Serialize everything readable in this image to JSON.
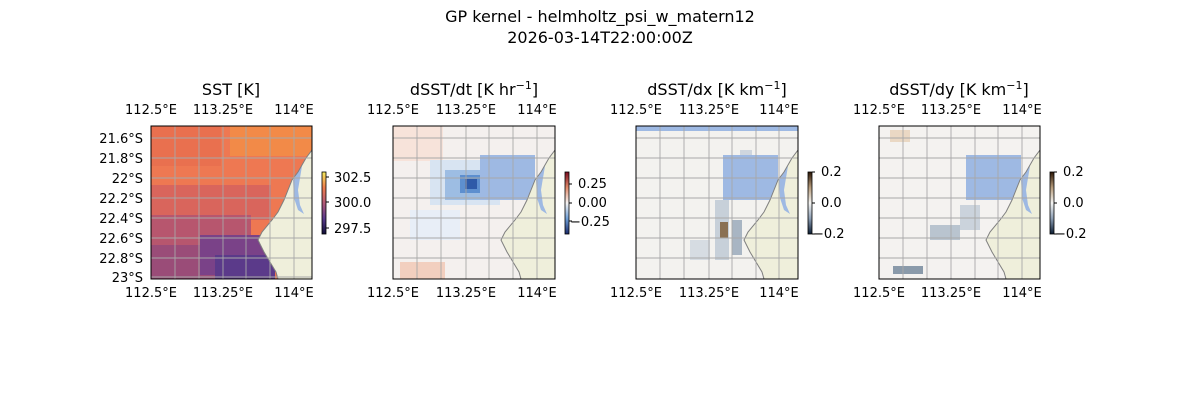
{
  "figure": {
    "title_line1": "GP kernel - helmholtz_psi_w_matern12",
    "title_line2": "2026-03-14T22:00:00Z"
  },
  "colors": {
    "land": "#efefdb",
    "water": "#9eb9e3",
    "grid": "#a8a8a8",
    "coast": "#7f7f7f"
  },
  "chart_data": [
    {
      "type": "heatmap",
      "title": "SST [K]",
      "colormap": "thermal (dark purple to orange-yellow)",
      "xticks_top": [
        "112.5°E",
        "113.25°E",
        "114°E"
      ],
      "xticks_bottom": [
        "112.5°E",
        "113.25°E",
        "114°E"
      ],
      "yticks_left": [
        "21.6°S",
        "21.8°S",
        "22°S",
        "22.2°S",
        "22.4°S",
        "22.6°S",
        "22.8°S",
        "23°S"
      ],
      "colorbar_ticks": [
        "302.5",
        "300.0",
        "297.5"
      ],
      "colorbar_range": [
        296.8,
        303.4
      ]
    },
    {
      "type": "heatmap",
      "title": "dSST/dt [K hr",
      "title_sup": "−1",
      "title_end": "]",
      "colormap": "diverging blue-white-red",
      "xticks_top": [
        "112.5°E",
        "113.25°E",
        "114°E"
      ],
      "xticks_bottom": [
        "112.5°E",
        "113.25°E",
        "114°E"
      ],
      "colorbar_ticks": [
        "0.25",
        "0.00",
        "−0.25"
      ],
      "colorbar_range": [
        -0.42,
        0.42
      ]
    },
    {
      "type": "heatmap",
      "title": "dSST/dx [K km",
      "title_sup": "−1",
      "title_end": "]",
      "colormap": "diverging dark-blue-white-brown",
      "xticks_top": [
        "112.5°E",
        "113.25°E",
        "114°E"
      ],
      "xticks_bottom": [
        "112.5°E",
        "113.25°E",
        "114°E"
      ],
      "colorbar_ticks": [
        "0.2",
        "0.0",
        "−0.2"
      ],
      "colorbar_range": [
        -0.2,
        0.2
      ]
    },
    {
      "type": "heatmap",
      "title": "dSST/dy [K km",
      "title_sup": "−1",
      "title_end": "]",
      "colormap": "diverging dark-blue-white-brown",
      "xticks_top": [
        "112.5°E",
        "113.25°E",
        "114°E"
      ],
      "xticks_bottom": [
        "112.5°E",
        "113.25°E",
        "114°E"
      ],
      "colorbar_ticks": [
        "0.2",
        "0.0",
        "−0.2"
      ],
      "colorbar_range": [
        -0.2,
        0.2
      ]
    }
  ]
}
